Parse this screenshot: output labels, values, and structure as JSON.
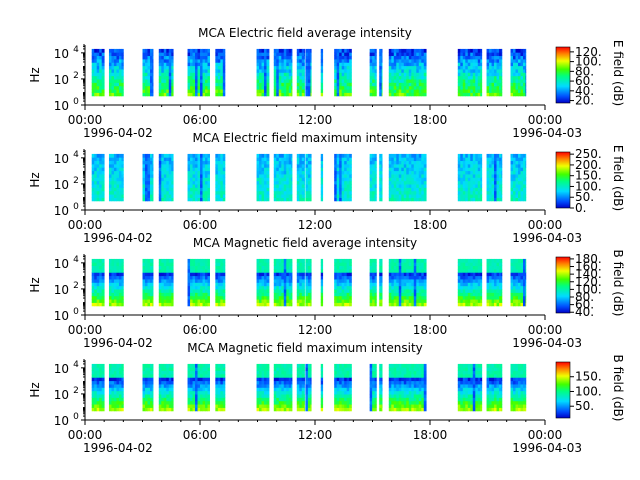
{
  "chart_data": [
    {
      "type": "heatmap",
      "title": "MCA  Electric field average intensity",
      "ylabel": "Hz",
      "yscale": "log",
      "ylim": [
        1,
        40000
      ],
      "yticks": [
        {
          "v": 1,
          "label": "10",
          "exp": "0"
        },
        {
          "v": 100,
          "label": "10",
          "exp": "2"
        },
        {
          "v": 10000,
          "label": "10",
          "exp": "4"
        }
      ],
      "xlim": [
        "1996-04-02T00:00",
        "1996-04-03T00:00"
      ],
      "xticks": [
        "00:00",
        "06:00",
        "12:00",
        "18:00",
        "00:00"
      ],
      "xstart_label": "1996-04-02",
      "xend_label": "1996-04-03",
      "colorbar": {
        "label": "E field (dB)",
        "min": 15,
        "max": 130,
        "ticks": [
          {
            "v": 20,
            "label": "20."
          },
          {
            "v": 40,
            "label": "40."
          },
          {
            "v": 60,
            "label": "60."
          },
          {
            "v": 80,
            "label": "80."
          },
          {
            "v": 100,
            "label": "100."
          },
          {
            "v": 120,
            "label": "120."
          }
        ]
      },
      "profile": "avg"
    },
    {
      "type": "heatmap",
      "title": "MCA  Electric field maximum intensity",
      "ylabel": "Hz",
      "yscale": "log",
      "ylim": [
        1,
        40000
      ],
      "yticks": [
        {
          "v": 1,
          "label": "10",
          "exp": "0"
        },
        {
          "v": 100,
          "label": "10",
          "exp": "2"
        },
        {
          "v": 10000,
          "label": "10",
          "exp": "4"
        }
      ],
      "xlim": [
        "1996-04-02T00:00",
        "1996-04-03T00:00"
      ],
      "xticks": [
        "00:00",
        "06:00",
        "12:00",
        "18:00",
        "00:00"
      ],
      "xstart_label": "1996-04-02",
      "xend_label": "1996-04-03",
      "colorbar": {
        "label": "E field (dB)",
        "min": 0,
        "max": 260,
        "ticks": [
          {
            "v": 0,
            "label": "0."
          },
          {
            "v": 50,
            "label": "50."
          },
          {
            "v": 100,
            "label": "100."
          },
          {
            "v": 150,
            "label": "150."
          },
          {
            "v": 200,
            "label": "200."
          },
          {
            "v": 250,
            "label": "250."
          }
        ]
      },
      "profile": "max"
    },
    {
      "type": "heatmap",
      "title": "MCA  Magnetic field average intensity",
      "ylabel": "Hz",
      "yscale": "log",
      "ylim": [
        1,
        40000
      ],
      "yticks": [
        {
          "v": 1,
          "label": "10",
          "exp": "0"
        },
        {
          "v": 100,
          "label": "10",
          "exp": "2"
        },
        {
          "v": 10000,
          "label": "10",
          "exp": "4"
        }
      ],
      "xlim": [
        "1996-04-02T00:00",
        "1996-04-03T00:00"
      ],
      "xticks": [
        "00:00",
        "06:00",
        "12:00",
        "18:00",
        "00:00"
      ],
      "xstart_label": "1996-04-02",
      "xend_label": "1996-04-03",
      "colorbar": {
        "label": "B field (dB)",
        "min": 38,
        "max": 185,
        "ticks": [
          {
            "v": 40,
            "label": "40."
          },
          {
            "v": 60,
            "label": "60."
          },
          {
            "v": 80,
            "label": "80."
          },
          {
            "v": 100,
            "label": "100."
          },
          {
            "v": 120,
            "label": "120."
          },
          {
            "v": 140,
            "label": "140."
          },
          {
            "v": 160,
            "label": "160."
          },
          {
            "v": 180,
            "label": "180."
          }
        ]
      },
      "profile": "mag"
    },
    {
      "type": "heatmap",
      "title": "MCA  Magnetic field maximum intensity",
      "ylabel": "Hz",
      "yscale": "log",
      "ylim": [
        1,
        40000
      ],
      "yticks": [
        {
          "v": 1,
          "label": "10",
          "exp": "0"
        },
        {
          "v": 100,
          "label": "10",
          "exp": "2"
        },
        {
          "v": 10000,
          "label": "10",
          "exp": "4"
        }
      ],
      "xlim": [
        "1996-04-02T00:00",
        "1996-04-03T00:00"
      ],
      "xticks": [
        "00:00",
        "06:00",
        "12:00",
        "18:00",
        "00:00"
      ],
      "xstart_label": "1996-04-02",
      "xend_label": "1996-04-03",
      "colorbar": {
        "label": "B field (dB)",
        "min": 10,
        "max": 200,
        "ticks": [
          {
            "v": 50,
            "label": "50."
          },
          {
            "v": 100,
            "label": "100."
          },
          {
            "v": 150,
            "label": "150."
          }
        ]
      },
      "profile": "mag"
    }
  ],
  "data_intervals_hours": [
    [
      0.35,
      1.0
    ],
    [
      1.25,
      2.0
    ],
    [
      3.0,
      3.55
    ],
    [
      3.85,
      4.6
    ],
    [
      5.35,
      6.5
    ],
    [
      6.8,
      7.3
    ],
    [
      8.95,
      9.6
    ],
    [
      9.85,
      10.8
    ],
    [
      11.05,
      11.45
    ],
    [
      11.5,
      11.8
    ],
    [
      12.3,
      12.4
    ],
    [
      13.0,
      13.9
    ],
    [
      14.85,
      15.2
    ],
    [
      15.35,
      15.5
    ],
    [
      15.85,
      17.8
    ],
    [
      19.45,
      20.7
    ],
    [
      20.95,
      21.75
    ],
    [
      22.2,
      23.0
    ]
  ],
  "spectrum_floor_hz": 5,
  "spectrum_ceiling_hz": 20000
}
